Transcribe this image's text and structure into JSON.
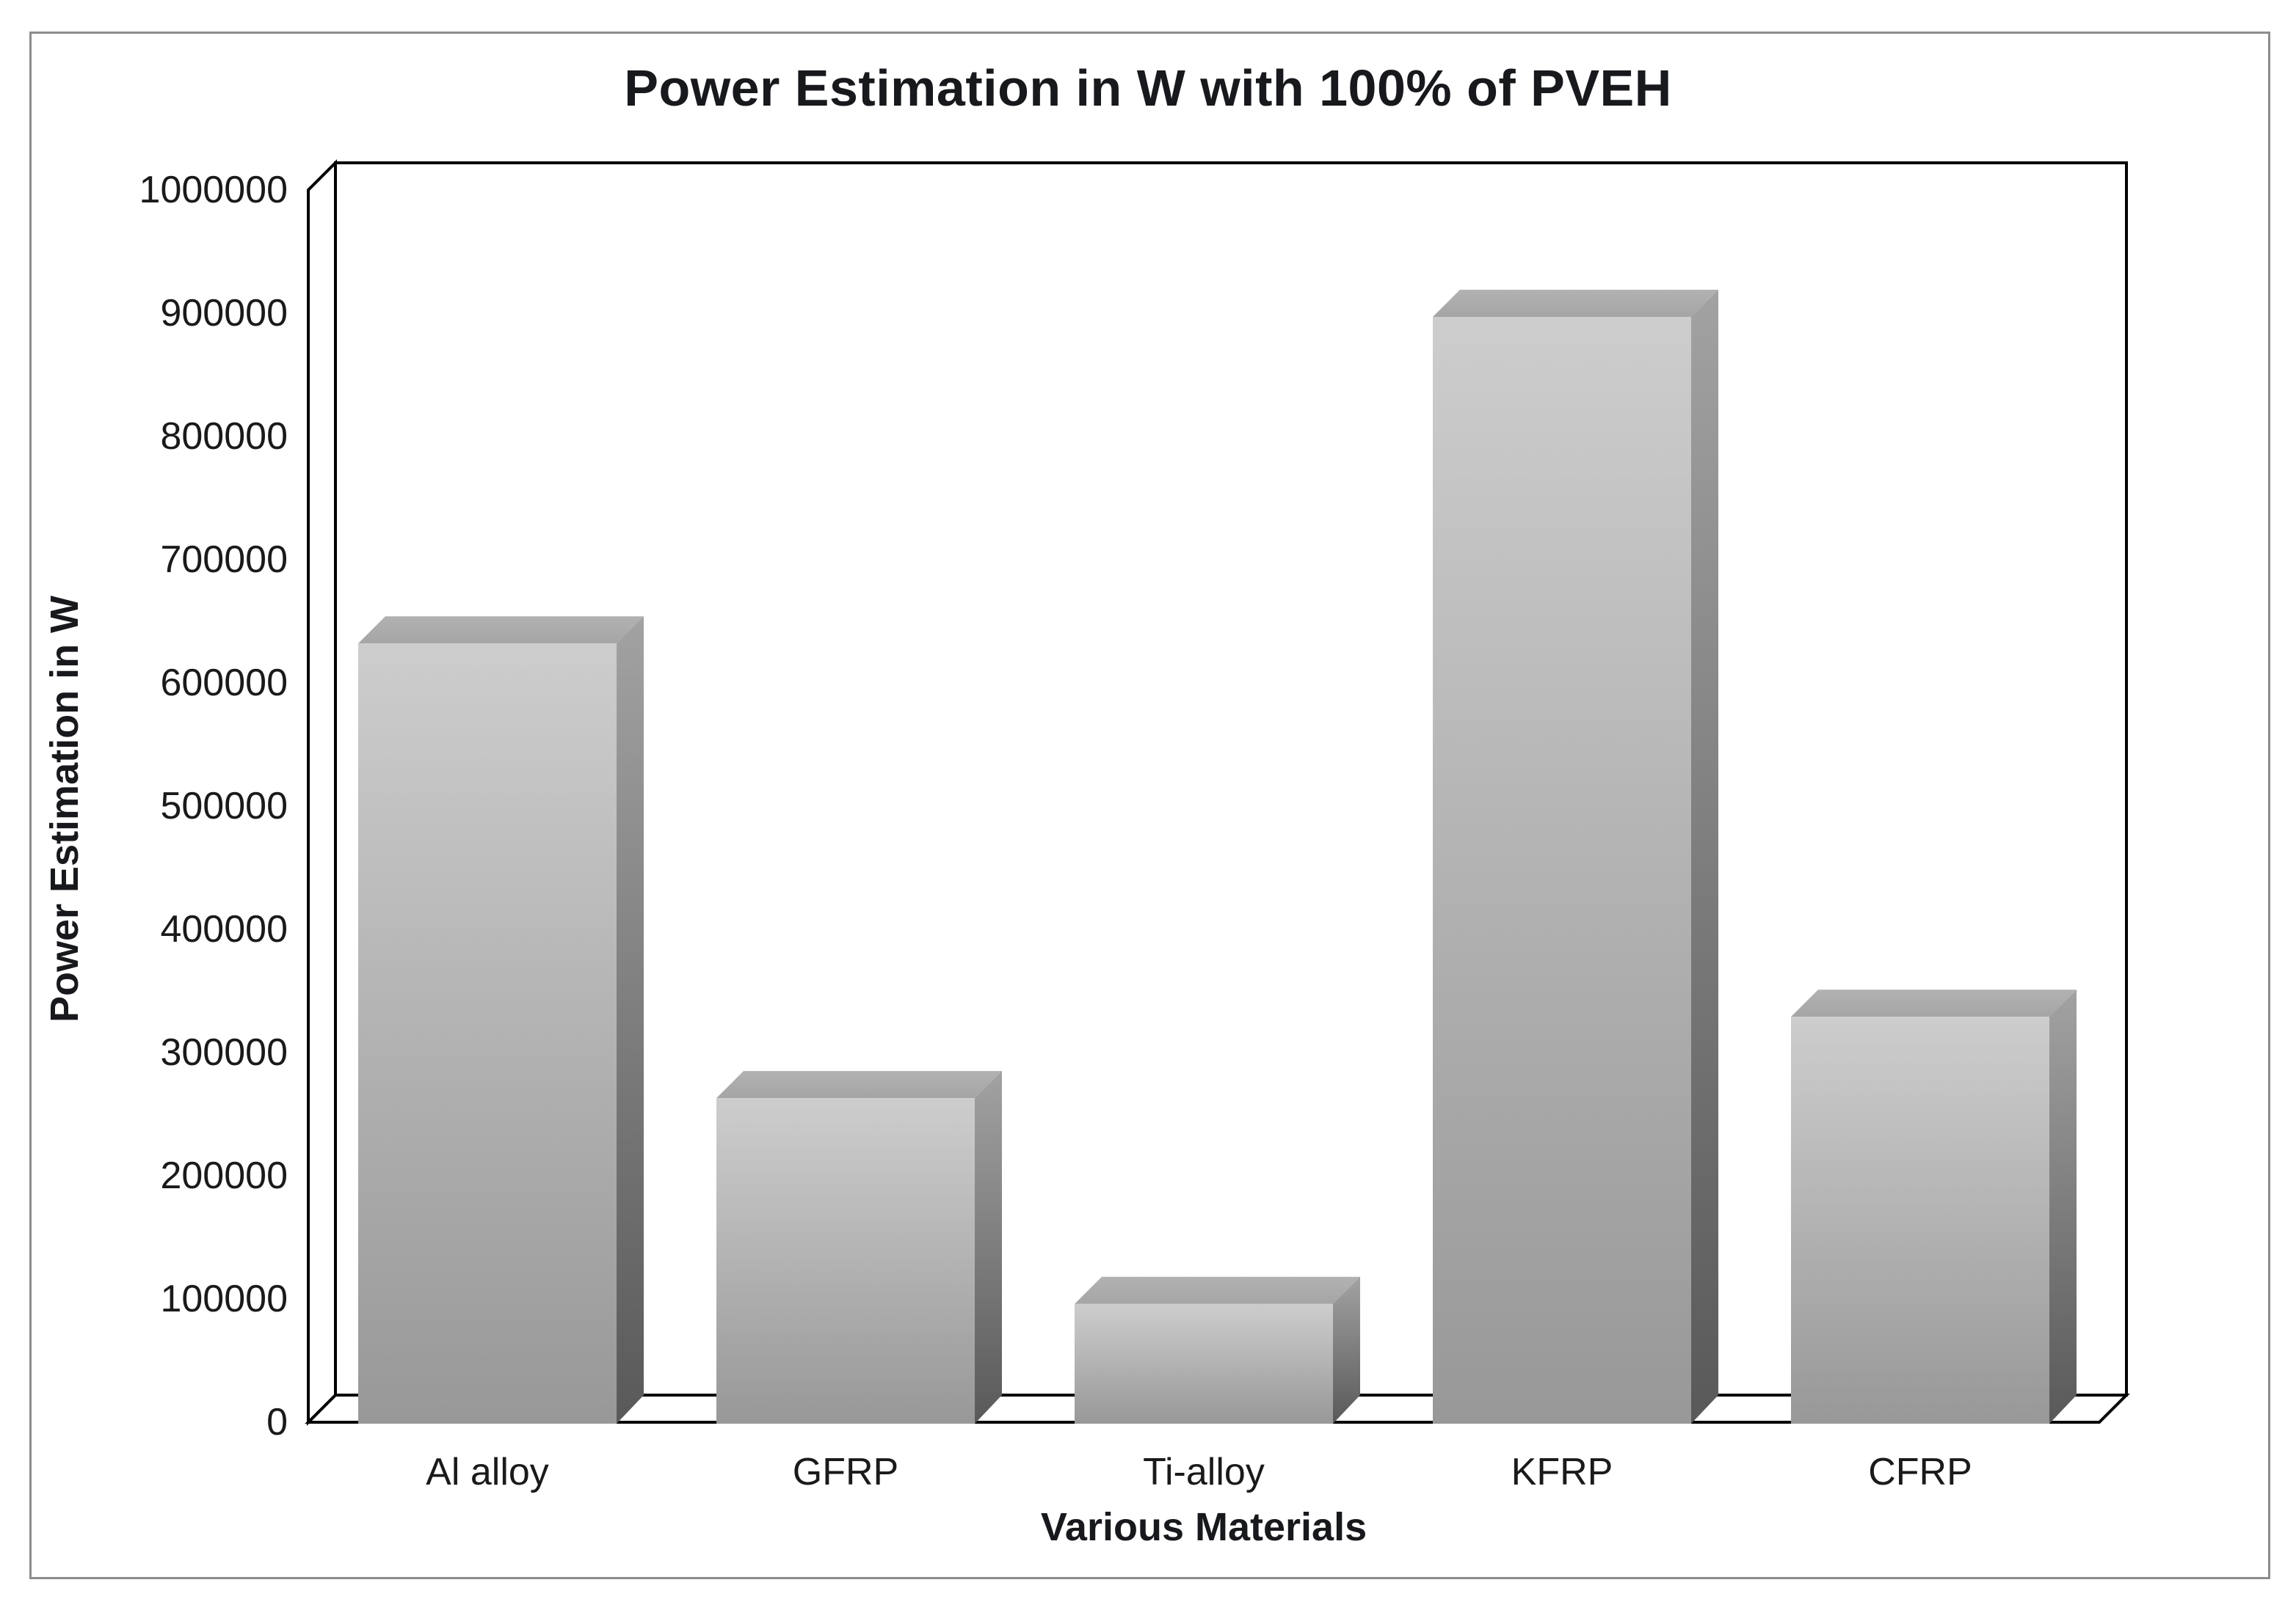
{
  "title": "Power Estimation in W with 100% of PVEH",
  "chart_data": {
    "type": "bar",
    "style": "3d-column",
    "title": "Power Estimation in W with 100% of PVEH",
    "xlabel": "Various Materials",
    "ylabel": "Power Estimation in W",
    "categories": [
      "Al alloy",
      "GFRP",
      "Ti-alloy",
      "KFRP",
      "CFRP"
    ],
    "values": [
      632000,
      263000,
      96000,
      897000,
      329000
    ],
    "ylim": [
      0,
      1000000
    ],
    "ytick_step": 100000,
    "ytick_labels": [
      "0",
      "100000",
      "200000",
      "300000",
      "400000",
      "500000",
      "600000",
      "700000",
      "800000",
      "900000",
      "1000000"
    ],
    "grid": false,
    "legend": "none"
  },
  "colors": {
    "background": "#ffffff",
    "frame_border": "#8c8c8c",
    "axis_line": "#000000",
    "text": "#1a1a1a",
    "bar_front_top": "#cdcdcd",
    "bar_front_bottom": "#989898",
    "bar_side_top": "#a2a2a2",
    "bar_side_bottom": "#595959",
    "bar_topface_back": "#b2b2b2",
    "bar_topface_front": "#a5a5a5"
  }
}
